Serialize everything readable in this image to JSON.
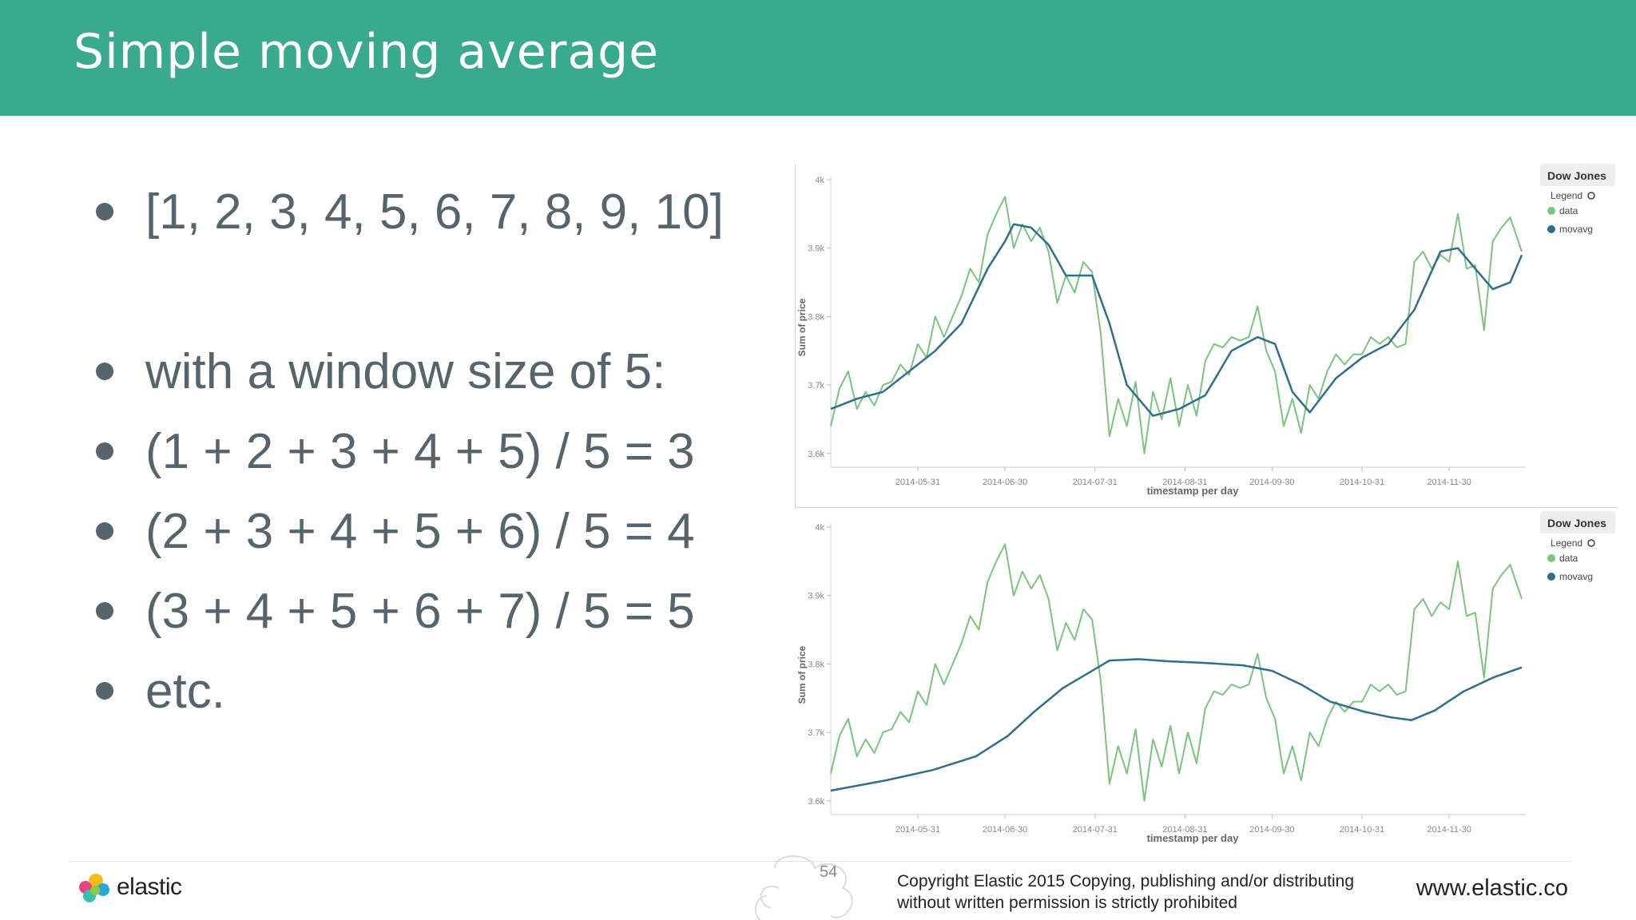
{
  "slide": {
    "title": "Simple moving average",
    "bullets": [
      "[1, 2, 3, 4, 5, 6, 7, 8, 9, 10]",
      "with a window size of 5:",
      "(1 + 2 + 3 + 4 + 5) / 5 = 3",
      "(2 + 3 + 4 + 5 + 6) / 5 = 4",
      "(3 + 4 + 5 + 6 + 7) / 5 = 5",
      "etc."
    ]
  },
  "footer": {
    "logo_text": "elastic",
    "page_number": "54",
    "copyright_line1": "Copyright Elastic 2015 Copying, publishing and/or distributing",
    "copyright_line2": "without written permission is strictly prohibited",
    "website": "www.elastic.co"
  },
  "colors": {
    "header": "#3aaa8f",
    "data_series": "#79c47e",
    "movavg_series": "#2f6f8a",
    "bullet_text": "#56646c"
  },
  "chart_data": [
    {
      "type": "line",
      "title": "",
      "legend_title": "Dow Jones",
      "legend_label": "Legend",
      "legend_position": "top-right",
      "xlabel": "timestamp per day",
      "ylabel": "Sum of price",
      "x_ticks": [
        "2014-05-31",
        "2014-06-30",
        "2014-07-31",
        "2014-08-31",
        "2014-09-30",
        "2014-10-31",
        "2014-11-30"
      ],
      "y_ticks": [
        "3.6k",
        "3.7k",
        "3.8k",
        "3.9k",
        "4k"
      ],
      "ylim": [
        3580,
        4000
      ],
      "xlim": [
        "2014-05-01",
        "2014-12-25"
      ],
      "series": [
        {
          "name": "data",
          "color": "#79c47e",
          "points": [
            [
              "2014-05-01",
              3640
            ],
            [
              "2014-05-04",
              3695
            ],
            [
              "2014-05-07",
              3720
            ],
            [
              "2014-05-10",
              3665
            ],
            [
              "2014-05-13",
              3690
            ],
            [
              "2014-05-16",
              3670
            ],
            [
              "2014-05-19",
              3700
            ],
            [
              "2014-05-22",
              3705
            ],
            [
              "2014-05-25",
              3730
            ],
            [
              "2014-05-28",
              3715
            ],
            [
              "2014-05-31",
              3760
            ],
            [
              "2014-06-03",
              3740
            ],
            [
              "2014-06-06",
              3800
            ],
            [
              "2014-06-09",
              3770
            ],
            [
              "2014-06-12",
              3800
            ],
            [
              "2014-06-15",
              3830
            ],
            [
              "2014-06-18",
              3870
            ],
            [
              "2014-06-21",
              3850
            ],
            [
              "2014-06-24",
              3920
            ],
            [
              "2014-06-27",
              3950
            ],
            [
              "2014-06-30",
              3975
            ],
            [
              "2014-07-03",
              3900
            ],
            [
              "2014-07-06",
              3935
            ],
            [
              "2014-07-09",
              3910
            ],
            [
              "2014-07-12",
              3930
            ],
            [
              "2014-07-15",
              3895
            ],
            [
              "2014-07-18",
              3820
            ],
            [
              "2014-07-21",
              3860
            ],
            [
              "2014-07-24",
              3835
            ],
            [
              "2014-07-27",
              3880
            ],
            [
              "2014-07-30",
              3865
            ],
            [
              "2014-08-02",
              3775
            ],
            [
              "2014-08-05",
              3625
            ],
            [
              "2014-08-08",
              3680
            ],
            [
              "2014-08-11",
              3640
            ],
            [
              "2014-08-14",
              3705
            ],
            [
              "2014-08-17",
              3600
            ],
            [
              "2014-08-20",
              3690
            ],
            [
              "2014-08-23",
              3650
            ],
            [
              "2014-08-26",
              3710
            ],
            [
              "2014-08-29",
              3640
            ],
            [
              "2014-09-01",
              3700
            ],
            [
              "2014-09-04",
              3655
            ],
            [
              "2014-09-07",
              3735
            ],
            [
              "2014-09-10",
              3760
            ],
            [
              "2014-09-13",
              3755
            ],
            [
              "2014-09-16",
              3770
            ],
            [
              "2014-09-19",
              3765
            ],
            [
              "2014-09-22",
              3770
            ],
            [
              "2014-09-25",
              3815
            ],
            [
              "2014-09-28",
              3750
            ],
            [
              "2014-10-01",
              3720
            ],
            [
              "2014-10-04",
              3640
            ],
            [
              "2014-10-07",
              3680
            ],
            [
              "2014-10-10",
              3630
            ],
            [
              "2014-10-13",
              3700
            ],
            [
              "2014-10-16",
              3680
            ],
            [
              "2014-10-19",
              3720
            ],
            [
              "2014-10-22",
              3745
            ],
            [
              "2014-10-25",
              3730
            ],
            [
              "2014-10-28",
              3745
            ],
            [
              "2014-10-31",
              3745
            ],
            [
              "2014-11-03",
              3770
            ],
            [
              "2014-11-06",
              3760
            ],
            [
              "2014-11-09",
              3770
            ],
            [
              "2014-11-12",
              3755
            ],
            [
              "2014-11-15",
              3760
            ],
            [
              "2014-11-18",
              3880
            ],
            [
              "2014-11-21",
              3895
            ],
            [
              "2014-11-24",
              3870
            ],
            [
              "2014-11-27",
              3890
            ],
            [
              "2014-11-30",
              3880
            ],
            [
              "2014-12-03",
              3950
            ],
            [
              "2014-12-06",
              3870
            ],
            [
              "2014-12-09",
              3875
            ],
            [
              "2014-12-12",
              3780
            ],
            [
              "2014-12-15",
              3910
            ],
            [
              "2014-12-18",
              3930
            ],
            [
              "2014-12-21",
              3945
            ],
            [
              "2014-12-25",
              3895
            ]
          ]
        },
        {
          "name": "movavg",
          "color": "#2f6f8a",
          "points": [
            [
              "2014-05-01",
              3665
            ],
            [
              "2014-05-10",
              3680
            ],
            [
              "2014-05-19",
              3690
            ],
            [
              "2014-05-28",
              3720
            ],
            [
              "2014-06-06",
              3750
            ],
            [
              "2014-06-15",
              3790
            ],
            [
              "2014-06-24",
              3870
            ],
            [
              "2014-06-30",
              3910
            ],
            [
              "2014-07-03",
              3935
            ],
            [
              "2014-07-09",
              3930
            ],
            [
              "2014-07-15",
              3905
            ],
            [
              "2014-07-21",
              3860
            ],
            [
              "2014-07-30",
              3860
            ],
            [
              "2014-08-05",
              3790
            ],
            [
              "2014-08-11",
              3700
            ],
            [
              "2014-08-20",
              3655
            ],
            [
              "2014-08-29",
              3665
            ],
            [
              "2014-09-07",
              3685
            ],
            [
              "2014-09-16",
              3750
            ],
            [
              "2014-09-25",
              3770
            ],
            [
              "2014-10-01",
              3760
            ],
            [
              "2014-10-07",
              3690
            ],
            [
              "2014-10-13",
              3660
            ],
            [
              "2014-10-22",
              3710
            ],
            [
              "2014-10-31",
              3740
            ],
            [
              "2014-11-09",
              3760
            ],
            [
              "2014-11-18",
              3810
            ],
            [
              "2014-11-27",
              3895
            ],
            [
              "2014-12-03",
              3900
            ],
            [
              "2014-12-09",
              3870
            ],
            [
              "2014-12-15",
              3840
            ],
            [
              "2014-12-21",
              3850
            ],
            [
              "2014-12-25",
              3890
            ]
          ]
        }
      ]
    },
    {
      "type": "line",
      "title": "",
      "legend_title": "Dow Jones",
      "legend_label": "Legend",
      "legend_position": "top-right",
      "xlabel": "timestamp per day",
      "ylabel": "Sum of price",
      "x_ticks": [
        "2014-05-31",
        "2014-06-30",
        "2014-07-31",
        "2014-08-31",
        "2014-09-30",
        "2014-10-31",
        "2014-11-30"
      ],
      "y_ticks": [
        "3.6k",
        "3.7k",
        "3.8k",
        "3.9k",
        "4k"
      ],
      "ylim": [
        3580,
        4000
      ],
      "xlim": [
        "2014-05-01",
        "2014-12-25"
      ],
      "series": [
        {
          "name": "data",
          "color": "#79c47e",
          "points": [
            [
              "2014-05-01",
              3640
            ],
            [
              "2014-05-04",
              3695
            ],
            [
              "2014-05-07",
              3720
            ],
            [
              "2014-05-10",
              3665
            ],
            [
              "2014-05-13",
              3690
            ],
            [
              "2014-05-16",
              3670
            ],
            [
              "2014-05-19",
              3700
            ],
            [
              "2014-05-22",
              3705
            ],
            [
              "2014-05-25",
              3730
            ],
            [
              "2014-05-28",
              3715
            ],
            [
              "2014-05-31",
              3760
            ],
            [
              "2014-06-03",
              3740
            ],
            [
              "2014-06-06",
              3800
            ],
            [
              "2014-06-09",
              3770
            ],
            [
              "2014-06-12",
              3800
            ],
            [
              "2014-06-15",
              3830
            ],
            [
              "2014-06-18",
              3870
            ],
            [
              "2014-06-21",
              3850
            ],
            [
              "2014-06-24",
              3920
            ],
            [
              "2014-06-27",
              3950
            ],
            [
              "2014-06-30",
              3975
            ],
            [
              "2014-07-03",
              3900
            ],
            [
              "2014-07-06",
              3935
            ],
            [
              "2014-07-09",
              3910
            ],
            [
              "2014-07-12",
              3930
            ],
            [
              "2014-07-15",
              3895
            ],
            [
              "2014-07-18",
              3820
            ],
            [
              "2014-07-21",
              3860
            ],
            [
              "2014-07-24",
              3835
            ],
            [
              "2014-07-27",
              3880
            ],
            [
              "2014-07-30",
              3865
            ],
            [
              "2014-08-02",
              3775
            ],
            [
              "2014-08-05",
              3625
            ],
            [
              "2014-08-08",
              3680
            ],
            [
              "2014-08-11",
              3640
            ],
            [
              "2014-08-14",
              3705
            ],
            [
              "2014-08-17",
              3600
            ],
            [
              "2014-08-20",
              3690
            ],
            [
              "2014-08-23",
              3650
            ],
            [
              "2014-08-26",
              3710
            ],
            [
              "2014-08-29",
              3640
            ],
            [
              "2014-09-01",
              3700
            ],
            [
              "2014-09-04",
              3655
            ],
            [
              "2014-09-07",
              3735
            ],
            [
              "2014-09-10",
              3760
            ],
            [
              "2014-09-13",
              3755
            ],
            [
              "2014-09-16",
              3770
            ],
            [
              "2014-09-19",
              3765
            ],
            [
              "2014-09-22",
              3770
            ],
            [
              "2014-09-25",
              3815
            ],
            [
              "2014-09-28",
              3750
            ],
            [
              "2014-10-01",
              3720
            ],
            [
              "2014-10-04",
              3640
            ],
            [
              "2014-10-07",
              3680
            ],
            [
              "2014-10-10",
              3630
            ],
            [
              "2014-10-13",
              3700
            ],
            [
              "2014-10-16",
              3680
            ],
            [
              "2014-10-19",
              3720
            ],
            [
              "2014-10-22",
              3745
            ],
            [
              "2014-10-25",
              3730
            ],
            [
              "2014-10-28",
              3745
            ],
            [
              "2014-10-31",
              3745
            ],
            [
              "2014-11-03",
              3770
            ],
            [
              "2014-11-06",
              3760
            ],
            [
              "2014-11-09",
              3770
            ],
            [
              "2014-11-12",
              3755
            ],
            [
              "2014-11-15",
              3760
            ],
            [
              "2014-11-18",
              3880
            ],
            [
              "2014-11-21",
              3895
            ],
            [
              "2014-11-24",
              3870
            ],
            [
              "2014-11-27",
              3890
            ],
            [
              "2014-11-30",
              3880
            ],
            [
              "2014-12-03",
              3950
            ],
            [
              "2014-12-06",
              3870
            ],
            [
              "2014-12-09",
              3875
            ],
            [
              "2014-12-12",
              3780
            ],
            [
              "2014-12-15",
              3910
            ],
            [
              "2014-12-18",
              3930
            ],
            [
              "2014-12-21",
              3945
            ],
            [
              "2014-12-25",
              3895
            ]
          ]
        },
        {
          "name": "movavg",
          "color": "#2f6f8a",
          "points": [
            [
              "2014-05-01",
              3615
            ],
            [
              "2014-05-20",
              3630
            ],
            [
              "2014-06-05",
              3645
            ],
            [
              "2014-06-20",
              3665
            ],
            [
              "2014-07-01",
              3695
            ],
            [
              "2014-07-10",
              3730
            ],
            [
              "2014-07-20",
              3765
            ],
            [
              "2014-08-01",
              3795
            ],
            [
              "2014-08-05",
              3805
            ],
            [
              "2014-08-15",
              3807
            ],
            [
              "2014-08-25",
              3804
            ],
            [
              "2014-09-05",
              3802
            ],
            [
              "2014-09-20",
              3798
            ],
            [
              "2014-09-30",
              3790
            ],
            [
              "2014-10-10",
              3770
            ],
            [
              "2014-10-20",
              3745
            ],
            [
              "2014-11-01",
              3730
            ],
            [
              "2014-11-10",
              3722
            ],
            [
              "2014-11-17",
              3718
            ],
            [
              "2014-11-25",
              3732
            ],
            [
              "2014-12-05",
              3760
            ],
            [
              "2014-12-15",
              3780
            ],
            [
              "2014-12-25",
              3795
            ]
          ]
        }
      ]
    }
  ]
}
